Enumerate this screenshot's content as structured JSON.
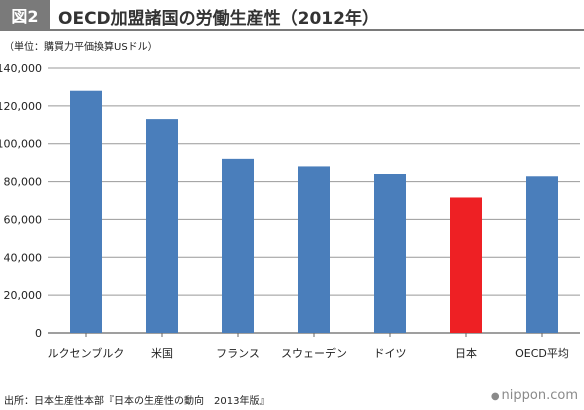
{
  "header": {
    "fig_label": "図2",
    "title": "OECD加盟諸国の労働生産性（2012年）"
  },
  "unit_note": "（単位：購買力平価換算USドル）",
  "source": "出所：日本生産性本部『日本の生産性の動向　2013年版』",
  "brand": {
    "dot": "●",
    "text": "nippon.com"
  },
  "colors": {
    "bar": "#4a7ebb",
    "highlight": "#ee2024",
    "grid": "#999999"
  },
  "chart_data": {
    "type": "bar",
    "categories": [
      "ルクセンブルク",
      "米国",
      "フランス",
      "スウェーデン",
      "ドイツ",
      "日本",
      "OECD平均"
    ],
    "values": [
      128000,
      113000,
      92000,
      88000,
      84000,
      71600,
      82800
    ],
    "highlight_index": 5,
    "ylim": [
      0,
      140000
    ],
    "yticks": [
      0,
      20000,
      40000,
      60000,
      80000,
      100000,
      120000,
      140000
    ],
    "ytick_labels": [
      "0",
      "20,000",
      "40,000",
      "60,000",
      "80,000",
      "100,000",
      "120,000",
      "140,000"
    ],
    "grid": true
  }
}
